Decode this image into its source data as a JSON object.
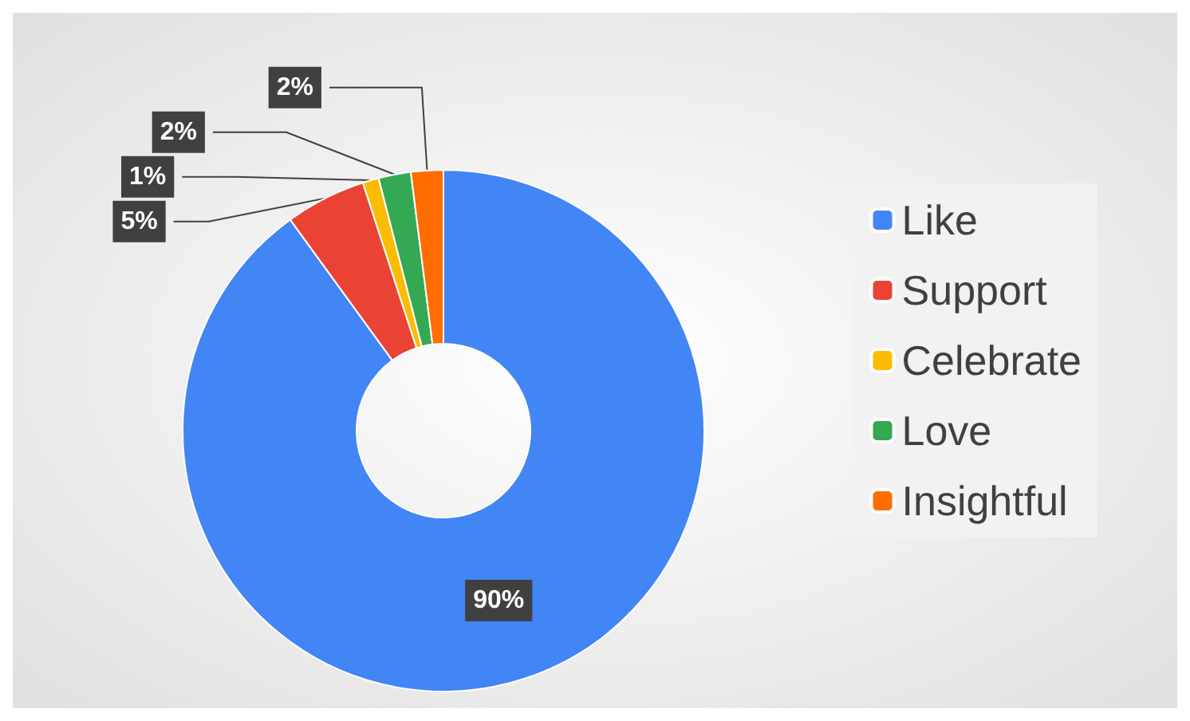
{
  "chart_data": {
    "type": "donut",
    "categories": [
      "Like",
      "Support",
      "Celebrate",
      "Love",
      "Insightful"
    ],
    "values": [
      90,
      5,
      1,
      2,
      2
    ],
    "colors": [
      "#4285f4",
      "#ea4335",
      "#fbbc04",
      "#34a853",
      "#ff6d01"
    ],
    "value_labels": [
      "90%",
      "5%",
      "1%",
      "2%",
      "2%"
    ],
    "legend": "right"
  }
}
